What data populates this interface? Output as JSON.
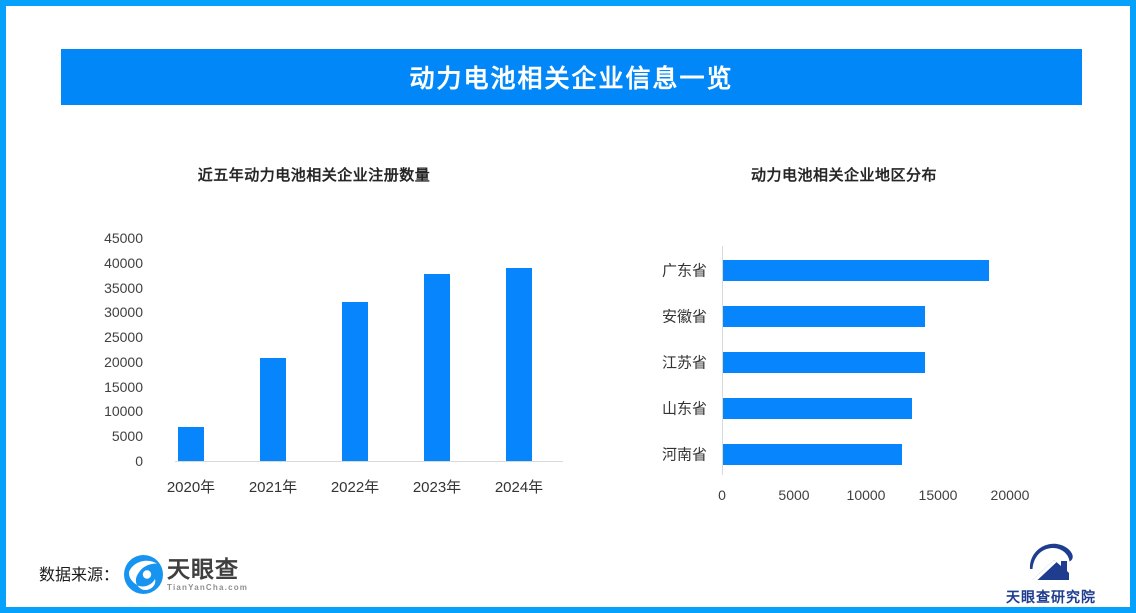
{
  "banner": {
    "title": "动力电池相关企业信息一览"
  },
  "colors": {
    "frame": "#05a1fa",
    "banner": "#0187f8",
    "bar": "#0685fc",
    "navy": "#1f3d8f",
    "axis": "#d9d9d9"
  },
  "chart_data": [
    {
      "type": "bar",
      "title": "近五年动力电池相关企业注册数量",
      "categories": [
        "2020年",
        "2021年",
        "2022年",
        "2023年",
        "2024年"
      ],
      "values": [
        6900,
        20700,
        32000,
        37700,
        38900
      ],
      "xlabel": "",
      "ylabel": "",
      "ylim": [
        0,
        45000
      ],
      "yticks": [
        0,
        5000,
        10000,
        15000,
        20000,
        25000,
        30000,
        35000,
        40000,
        45000
      ],
      "grid": false,
      "legend": "none"
    },
    {
      "type": "bar-horizontal",
      "title": "动力电池相关企业地区分布",
      "categories": [
        "广东省",
        "安徽省",
        "江苏省",
        "山东省",
        "河南省"
      ],
      "values": [
        18500,
        14000,
        14000,
        13100,
        12400
      ],
      "xlabel": "",
      "ylabel": "",
      "xlim": [
        0,
        20000
      ],
      "xticks": [
        0,
        5000,
        10000,
        15000,
        20000
      ],
      "grid": false,
      "legend": "none"
    }
  ],
  "footer": {
    "source_label": "数据来源：",
    "tianyancha_logo_text": "天眼查",
    "tianyancha_logo_url_text": "TianYanCha.com",
    "institute_logo_text": "天眼查研究院"
  }
}
